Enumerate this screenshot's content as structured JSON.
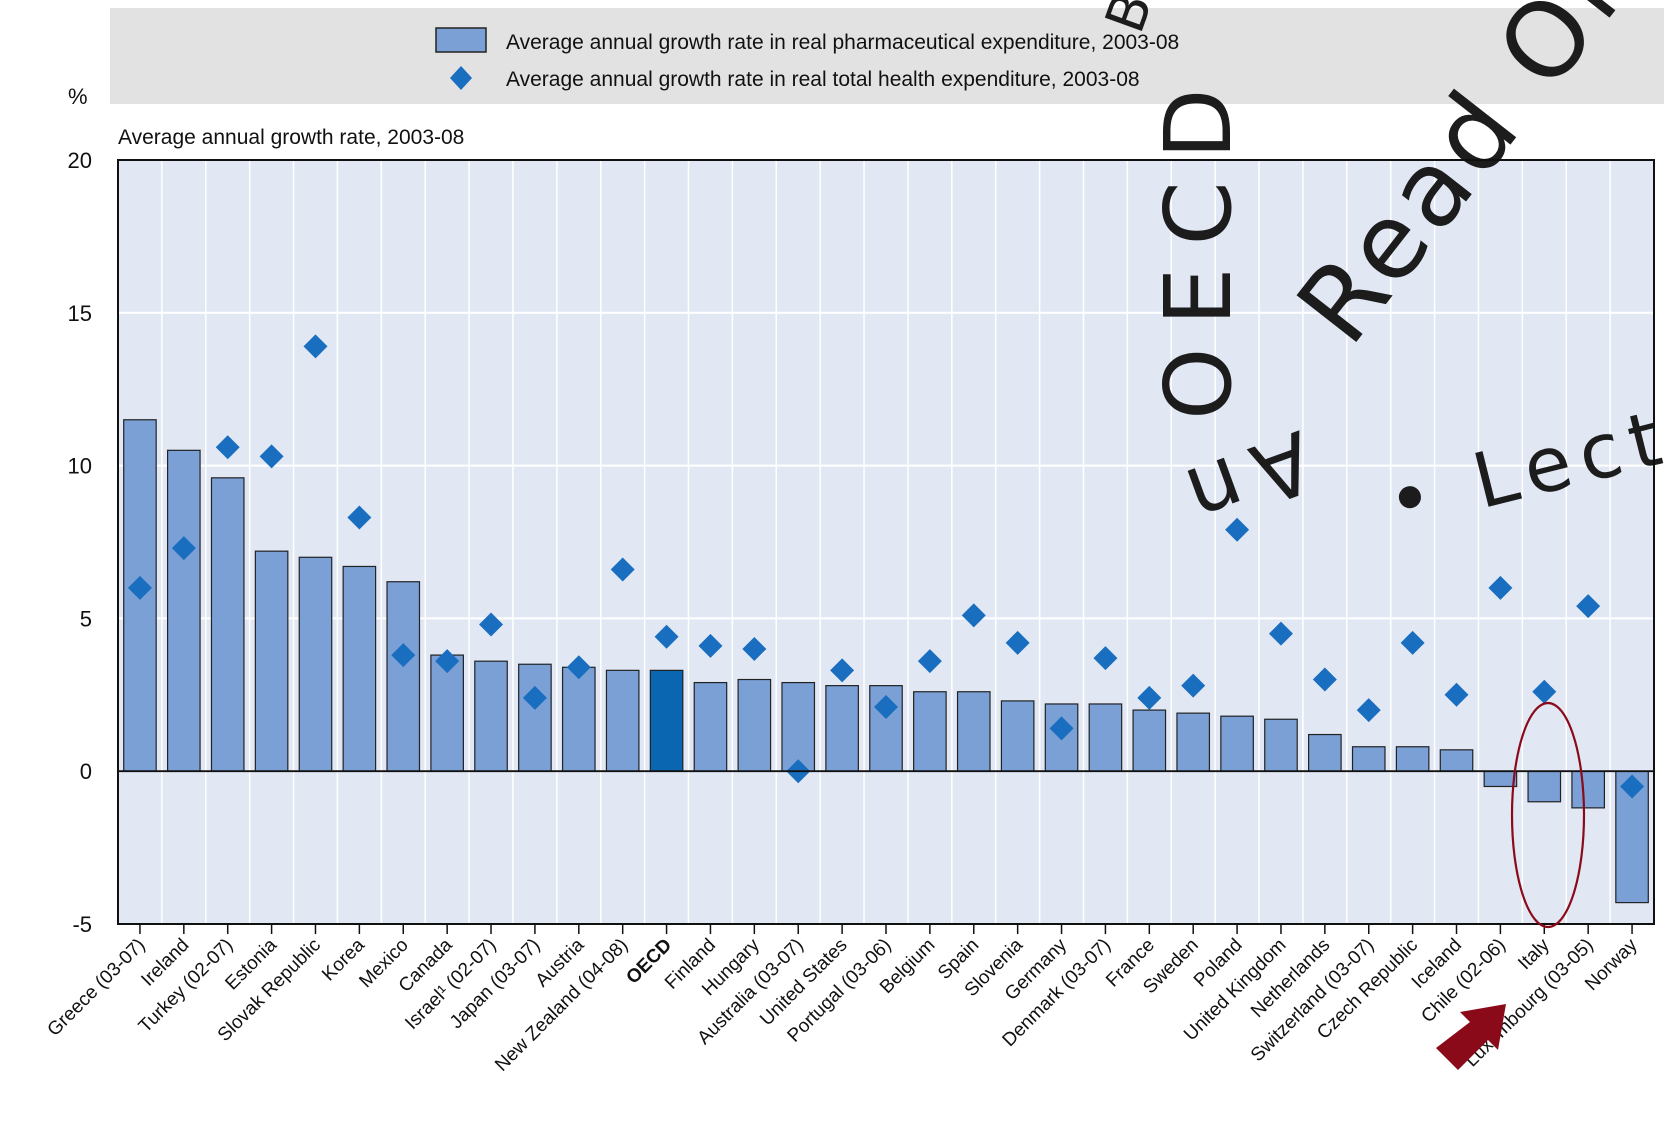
{
  "chart_data": {
    "type": "bar",
    "percent_symbol": "%",
    "subtitle": "Average annual growth rate, 2003-08",
    "ylim": [
      -5,
      20
    ],
    "yticks": [
      -5,
      0,
      5,
      10,
      15,
      20
    ],
    "grid": true,
    "legend_position": "top",
    "categories": [
      "Greece (03-07)",
      "Ireland",
      "Turkey (02-07)",
      "Estonia",
      "Slovak Republic",
      "Korea",
      "Mexico",
      "Canada",
      "Israel¹ (02-07)",
      "Japan (03-07)",
      "Austria",
      "New Zealand (04-08)",
      "OECD",
      "Finland",
      "Hungary",
      "Australia (03-07)",
      "United States",
      "Portugal (03-06)",
      "Belgium",
      "Spain",
      "Slovenia",
      "Germany",
      "Denmark (03-07)",
      "France",
      "Sweden",
      "Poland",
      "United Kingdom",
      "Netherlands",
      "Switzerland (03-07)",
      "Czech Republic",
      "Iceland",
      "Chile (02-06)",
      "Italy",
      "Luxembourg (03-05)",
      "Norway"
    ],
    "series": [
      {
        "name": "Average annual growth rate in real pharmaceutical expenditure, 2003-08",
        "kind": "bar",
        "color": "#7aa0d6",
        "highlight_color": "#0a66b0",
        "values": [
          11.5,
          10.5,
          9.6,
          7.2,
          7.0,
          6.7,
          6.2,
          3.8,
          3.6,
          3.5,
          3.4,
          3.3,
          3.3,
          2.9,
          3.0,
          2.9,
          2.8,
          2.8,
          2.6,
          2.6,
          2.3,
          2.2,
          2.2,
          2.0,
          1.9,
          1.8,
          1.7,
          1.2,
          0.8,
          0.8,
          0.7,
          -0.5,
          -1.0,
          -1.2,
          -4.3
        ]
      },
      {
        "name": "Average annual growth rate in real total health expenditure, 2003-08",
        "kind": "marker",
        "color": "#1a6ec0",
        "values": [
          6.0,
          7.3,
          10.6,
          10.3,
          13.9,
          8.3,
          3.8,
          3.6,
          4.8,
          2.4,
          3.4,
          6.6,
          4.4,
          4.1,
          4.0,
          0.0,
          3.3,
          2.1,
          3.6,
          5.1,
          4.2,
          1.4,
          3.7,
          2.4,
          2.8,
          7.9,
          4.5,
          3.0,
          2.0,
          4.2,
          2.5,
          6.0,
          2.6,
          5.4,
          -0.5
        ]
      }
    ],
    "highlight_category": "OECD",
    "annotation": {
      "circled_categories": [
        "Italy"
      ],
      "arrow_target": "Italy",
      "color": "#8b0a1a"
    }
  },
  "watermark": {
    "line1": "B",
    "line2": "OECD",
    "line3": "Read Onl",
    "line4": "An",
    "line5": "• Lect"
  },
  "colors": {
    "background": "#e1e8f4",
    "legend_background": "#e2e2e2",
    "bar_border": "#222222"
  }
}
